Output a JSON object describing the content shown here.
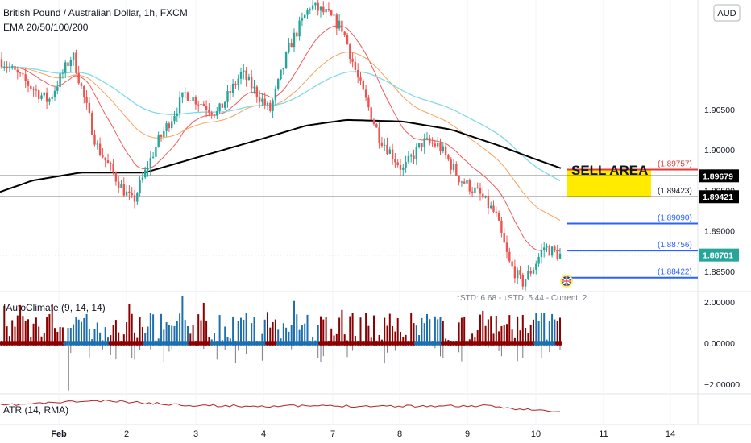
{
  "header": {
    "title": "British Pound / Australian Dollar, 1h, FXCM",
    "indicator": "EMA 20/50/100/200",
    "currency": "AUD"
  },
  "colors": {
    "up": "#26a69a",
    "down": "#ef5350",
    "ema20": "#f05a5a",
    "ema50": "#f7a35c",
    "ema100": "#7fdbe6",
    "ema200": "#000000",
    "sell_zone": "#ffeb00",
    "red_level": "#e53935",
    "blue_level": "#2962ff",
    "climate_red": "#8b0000",
    "climate_blue": "#1e6fb0",
    "atr": "#b22222"
  },
  "sell_area_label": "SELL AREA",
  "flag_icon": "uk-flag-icon",
  "chart_data": {
    "type": "candlestick",
    "symbol": "GBPAUD",
    "ylim": [
      1.8825,
      1.9185
    ],
    "y_ticks": [
      "1.90500",
      "1.90000",
      "1.89500",
      "1.89000",
      "1.88500"
    ],
    "x_ticks": [
      "Feb",
      "2",
      "3",
      "4",
      "7",
      "8",
      "9",
      "10",
      "11",
      "14"
    ],
    "horizontal_lines": [
      {
        "value": 1.89679,
        "label": "1.89679",
        "color": "#000000",
        "style": "badge"
      },
      {
        "value": 1.89421,
        "label": "1.89421",
        "color": "#000000",
        "style": "badge"
      }
    ],
    "level_lines": [
      {
        "value": 1.89757,
        "label": "(1.89757)",
        "color": "#e53935"
      },
      {
        "value": 1.89423,
        "label": "(1.89423)",
        "color": "#000000"
      },
      {
        "value": 1.8909,
        "label": "(1.89090)",
        "color": "#2962ff"
      },
      {
        "value": 1.88756,
        "label": "(1.88756)",
        "color": "#2962ff"
      },
      {
        "value": 1.88422,
        "label": "(1.88422)",
        "color": "#2962ff"
      }
    ],
    "current_price": {
      "value": 1.88701,
      "label": "1.88701",
      "color": "#26a69a"
    },
    "sell_area": {
      "from": 1.89423,
      "to": 1.89757
    },
    "panes": [
      {
        "name": "!AutoClimate (9, 14, 14)",
        "stats": "↑STD: 6.68 - ↓STD: 5.44 - Current: 2",
        "ylim": [
          -2.6,
          2.6
        ],
        "y_ticks": [
          "2.00000",
          "0.00000",
          "−2.00000"
        ]
      },
      {
        "name": "ATR (14, RMA)"
      }
    ]
  }
}
